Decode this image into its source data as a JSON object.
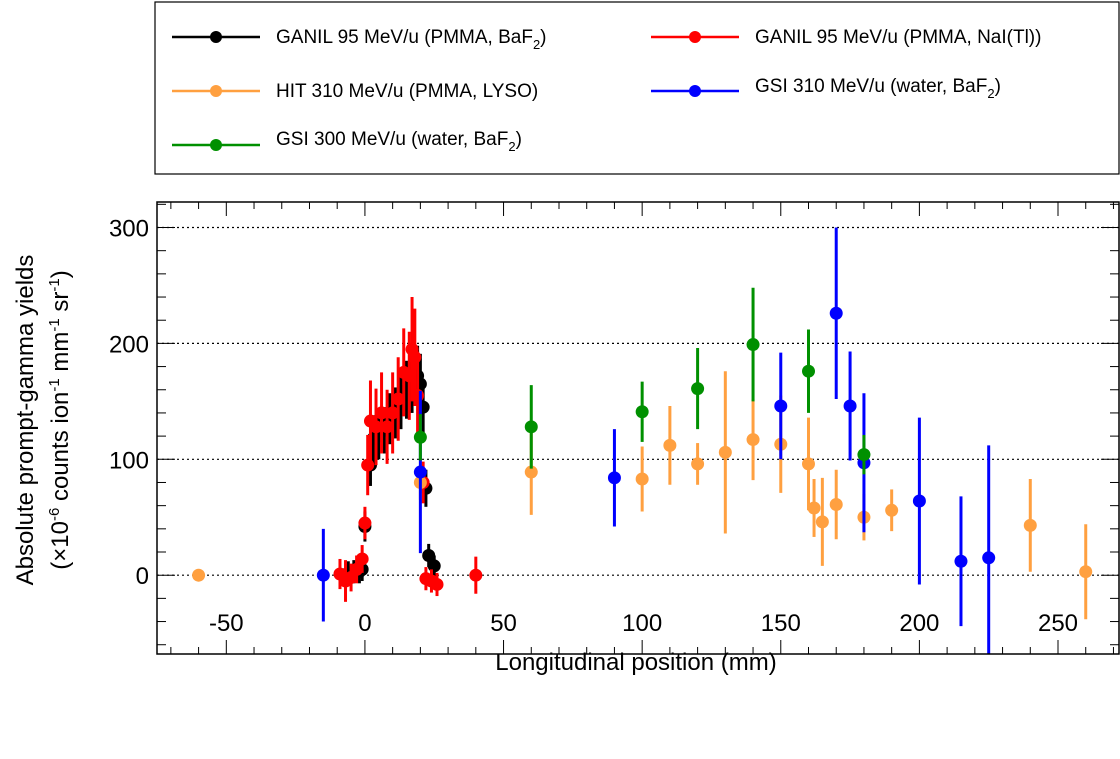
{
  "chart_data": {
    "type": "scatter",
    "xlabel": "Longitudinal position (mm)",
    "ylabel": {
      "line1": "Absolute prompt-gamma yields",
      "line2_pre": "(×10",
      "exp_neg6": "-6",
      "line2_mid": " counts ion",
      "exp_neg1": "-1",
      "line2_mm": " mm",
      "line2_sr": " sr"
    },
    "xlim": [
      -75,
      272
    ],
    "ylim": [
      -68,
      322
    ],
    "xticks": [
      -50,
      0,
      50,
      100,
      150,
      200,
      250
    ],
    "yticks": [
      0,
      100,
      200,
      300
    ],
    "xtick_labels": [
      "-50",
      "0",
      "50",
      "100",
      "150",
      "200",
      "250"
    ],
    "ytick_labels": [
      "0",
      "100",
      "200",
      "300"
    ],
    "grid": {
      "horizontal_dotted": true,
      "values": [
        0,
        100,
        200,
        300
      ]
    },
    "legend": {
      "placement": "top",
      "columns": 2
    },
    "series": [
      {
        "key": "ganil_baf2",
        "name": "GANIL 95 MeV/u (PMMA, BaF",
        "name_sub": "2",
        "name_tail": ")",
        "color": "#000000",
        "points": [
          {
            "x": -6,
            "y": 2,
            "err": 10
          },
          {
            "x": -4,
            "y": 3,
            "err": 10
          },
          {
            "x": -2,
            "y": 3,
            "err": 10
          },
          {
            "x": -1,
            "y": 5,
            "err": 10
          },
          {
            "x": 0,
            "y": 42,
            "err": 13
          },
          {
            "x": 2,
            "y": 95,
            "err": 18
          },
          {
            "x": 3,
            "y": 118,
            "err": 20
          },
          {
            "x": 5,
            "y": 120,
            "err": 20
          },
          {
            "x": 7,
            "y": 125,
            "err": 20
          },
          {
            "x": 9,
            "y": 135,
            "err": 22
          },
          {
            "x": 11,
            "y": 140,
            "err": 22
          },
          {
            "x": 13,
            "y": 150,
            "err": 24
          },
          {
            "x": 15,
            "y": 160,
            "err": 25
          },
          {
            "x": 17,
            "y": 165,
            "err": 25
          },
          {
            "x": 19,
            "y": 172,
            "err": 26
          },
          {
            "x": 20,
            "y": 165,
            "err": 26
          },
          {
            "x": 21,
            "y": 145,
            "err": 24
          },
          {
            "x": 22,
            "y": 75,
            "err": 16
          },
          {
            "x": 23,
            "y": 17,
            "err": 10
          },
          {
            "x": 25,
            "y": 8,
            "err": 9
          }
        ]
      },
      {
        "key": "ganil_nai",
        "name": "GANIL 95 MeV/u (PMMA, NaI(Tl))",
        "color": "#ff0000",
        "points": [
          {
            "x": -9,
            "y": 1,
            "err": 13
          },
          {
            "x": -7,
            "y": -5,
            "err": 18
          },
          {
            "x": -5,
            "y": -2,
            "err": 12
          },
          {
            "x": -3,
            "y": 5,
            "err": 12
          },
          {
            "x": -1,
            "y": 14,
            "err": 12
          },
          {
            "x": 0,
            "y": 45,
            "err": 14
          },
          {
            "x": 1,
            "y": 95,
            "err": 26
          },
          {
            "x": 2,
            "y": 133,
            "err": 35
          },
          {
            "x": 4,
            "y": 128,
            "err": 33
          },
          {
            "x": 6,
            "y": 140,
            "err": 35
          },
          {
            "x": 8,
            "y": 128,
            "err": 32
          },
          {
            "x": 10,
            "y": 140,
            "err": 35
          },
          {
            "x": 12,
            "y": 152,
            "err": 36
          },
          {
            "x": 14,
            "y": 175,
            "err": 38
          },
          {
            "x": 16,
            "y": 172,
            "err": 38
          },
          {
            "x": 17,
            "y": 195,
            "err": 45
          },
          {
            "x": 18,
            "y": 188,
            "err": 42
          },
          {
            "x": 19,
            "y": 155,
            "err": 38
          },
          {
            "x": 21,
            "y": 80,
            "err": 18
          },
          {
            "x": 22,
            "y": -3,
            "err": 10
          },
          {
            "x": 24,
            "y": -5,
            "err": 10
          },
          {
            "x": 26,
            "y": -8,
            "err": 10
          },
          {
            "x": 40,
            "y": 0,
            "err": 16
          }
        ]
      },
      {
        "key": "hit",
        "name": "HIT 310 MeV/u (PMMA, LYSO)",
        "color": "#ffa040",
        "points": [
          {
            "x": -60,
            "y": 0,
            "err": 5
          },
          {
            "x": 20,
            "y": 80,
            "err": 15
          },
          {
            "x": 60,
            "y": 89,
            "err": 37
          },
          {
            "x": 100,
            "y": 83,
            "err": 28
          },
          {
            "x": 110,
            "y": 112,
            "err": 34
          },
          {
            "x": 120,
            "y": 96,
            "err": 18
          },
          {
            "x": 130,
            "y": 106,
            "err": 70
          },
          {
            "x": 140,
            "y": 117,
            "err": 35
          },
          {
            "x": 150,
            "y": 113,
            "err": 42
          },
          {
            "x": 160,
            "y": 96,
            "err": 40
          },
          {
            "x": 162,
            "y": 58,
            "err": 25
          },
          {
            "x": 165,
            "y": 46,
            "err": 38
          },
          {
            "x": 170,
            "y": 61,
            "err": 30
          },
          {
            "x": 180,
            "y": 50,
            "err": 20
          },
          {
            "x": 190,
            "y": 56,
            "err": 18
          },
          {
            "x": 240,
            "y": 43,
            "err": 40
          },
          {
            "x": 260,
            "y": 3,
            "err": 41
          }
        ]
      },
      {
        "key": "gsi310",
        "name": "GSI 310 MeV/u (water, BaF",
        "name_sub": "2",
        "name_tail": ")",
        "color": "#0000ff",
        "points": [
          {
            "x": -15,
            "y": 0,
            "err": 40
          },
          {
            "x": 20,
            "y": 89,
            "err": 70
          },
          {
            "x": 90,
            "y": 84,
            "err": 42
          },
          {
            "x": 150,
            "y": 146,
            "err": 46
          },
          {
            "x": 170,
            "y": 226,
            "err": 74
          },
          {
            "x": 175,
            "y": 146,
            "err": 47
          },
          {
            "x": 180,
            "y": 97,
            "err": 60
          },
          {
            "x": 200,
            "y": 64,
            "err": 72
          },
          {
            "x": 215,
            "y": 12,
            "err": 56
          },
          {
            "x": 225,
            "y": 15,
            "err": 97
          }
        ]
      },
      {
        "key": "gsi300",
        "name": "GSI 300 MeV/u (water, BaF",
        "name_sub": "2",
        "name_tail": ")",
        "color": "#009000",
        "points": [
          {
            "x": 20,
            "y": 119,
            "err": 20
          },
          {
            "x": 60,
            "y": 128,
            "err": 36
          },
          {
            "x": 100,
            "y": 141,
            "err": 26
          },
          {
            "x": 120,
            "y": 161,
            "err": 35
          },
          {
            "x": 140,
            "y": 199,
            "err": 49
          },
          {
            "x": 160,
            "y": 176,
            "err": 36
          },
          {
            "x": 180,
            "y": 104,
            "err": 17
          }
        ]
      }
    ]
  }
}
